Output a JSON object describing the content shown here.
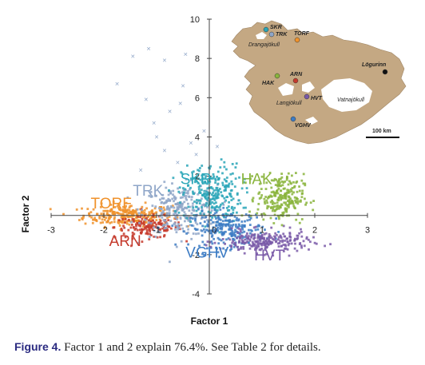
{
  "chart_data": {
    "type": "scatter",
    "title": "",
    "xlabel": "Factor 1",
    "ylabel": "Factor 2",
    "xlim": [
      -3,
      3
    ],
    "ylim": [
      -4,
      10
    ],
    "xticks": [
      "-3",
      "-2",
      "-1",
      "0",
      "1",
      "2",
      "3"
    ],
    "yticks": [
      "-4",
      "-2",
      "2",
      "4",
      "6",
      "8",
      "10"
    ],
    "series": [
      {
        "name": "TORF",
        "color": "#f0922b",
        "center": [
          -1.55,
          0.0
        ],
        "spread": [
          0.42,
          0.28
        ],
        "count": 260
      },
      {
        "name": "ARN",
        "color": "#c53a2c",
        "center": [
          -1.15,
          -0.6
        ],
        "spread": [
          0.32,
          0.28
        ],
        "count": 150
      },
      {
        "name": "TRK",
        "color": "#8fa6c8",
        "center": [
          -0.55,
          0.25
        ],
        "spread": [
          0.35,
          0.65
        ],
        "count": 260
      },
      {
        "name": "SKR",
        "color": "#2aa6b8",
        "center": [
          0.05,
          1.1
        ],
        "spread": [
          0.28,
          0.75
        ],
        "count": 260
      },
      {
        "name": "VGHV",
        "color": "#3d7cc4",
        "center": [
          0.35,
          -0.7
        ],
        "spread": [
          0.35,
          0.45
        ],
        "count": 240
      },
      {
        "name": "HVT",
        "color": "#7a5aa8",
        "center": [
          1.05,
          -1.35
        ],
        "spread": [
          0.42,
          0.28
        ],
        "count": 240
      },
      {
        "name": "HAK",
        "color": "#8ab43c",
        "center": [
          1.35,
          0.9
        ],
        "spread": [
          0.22,
          0.6
        ],
        "count": 240
      }
    ],
    "outliers": [
      {
        "x": -1.15,
        "y": 8.4
      },
      {
        "x": -1.45,
        "y": 8.0
      },
      {
        "x": -1.75,
        "y": 6.6
      },
      {
        "x": -0.85,
        "y": 7.8
      },
      {
        "x": -0.45,
        "y": 8.1
      },
      {
        "x": -1.2,
        "y": 5.8
      },
      {
        "x": -0.75,
        "y": 5.2
      },
      {
        "x": -1.05,
        "y": 4.6
      },
      {
        "x": -0.55,
        "y": 5.6
      },
      {
        "x": -0.35,
        "y": 3.6
      },
      {
        "x": -0.25,
        "y": 3.0
      },
      {
        "x": -0.85,
        "y": 3.2
      },
      {
        "x": -0.1,
        "y": 4.2
      },
      {
        "x": 0.15,
        "y": 3.4
      },
      {
        "x": -0.6,
        "y": 2.6
      },
      {
        "x": -1.3,
        "y": 2.2
      },
      {
        "x": -0.5,
        "y": 6.5
      },
      {
        "x": -1.0,
        "y": 3.9
      }
    ]
  },
  "map": {
    "scale_label": "100 km",
    "sites": [
      {
        "name": "SKR",
        "color": "#2aa6b8"
      },
      {
        "name": "TRK",
        "color": "#8fa6c8"
      },
      {
        "name": "TORF",
        "color": "#f0922b"
      },
      {
        "name": "HAK",
        "color": "#8ab43c"
      },
      {
        "name": "ARN",
        "color": "#c53a2c"
      },
      {
        "name": "HVT",
        "color": "#7a5aa8"
      },
      {
        "name": "VGHV",
        "color": "#3d7cc4"
      },
      {
        "name": "Lögurinn",
        "color": "#111111"
      }
    ],
    "glaciers": [
      "Drangajökull",
      "Langjökull",
      "Vatnajökull"
    ]
  },
  "caption": {
    "label": "Figure 4.",
    "text": " Factor 1 and 2 explain 76.4%. See Table 2 for details."
  },
  "colors": {
    "land": "#c4a883",
    "glacier": "#ffffff",
    "axis": "#444444"
  }
}
